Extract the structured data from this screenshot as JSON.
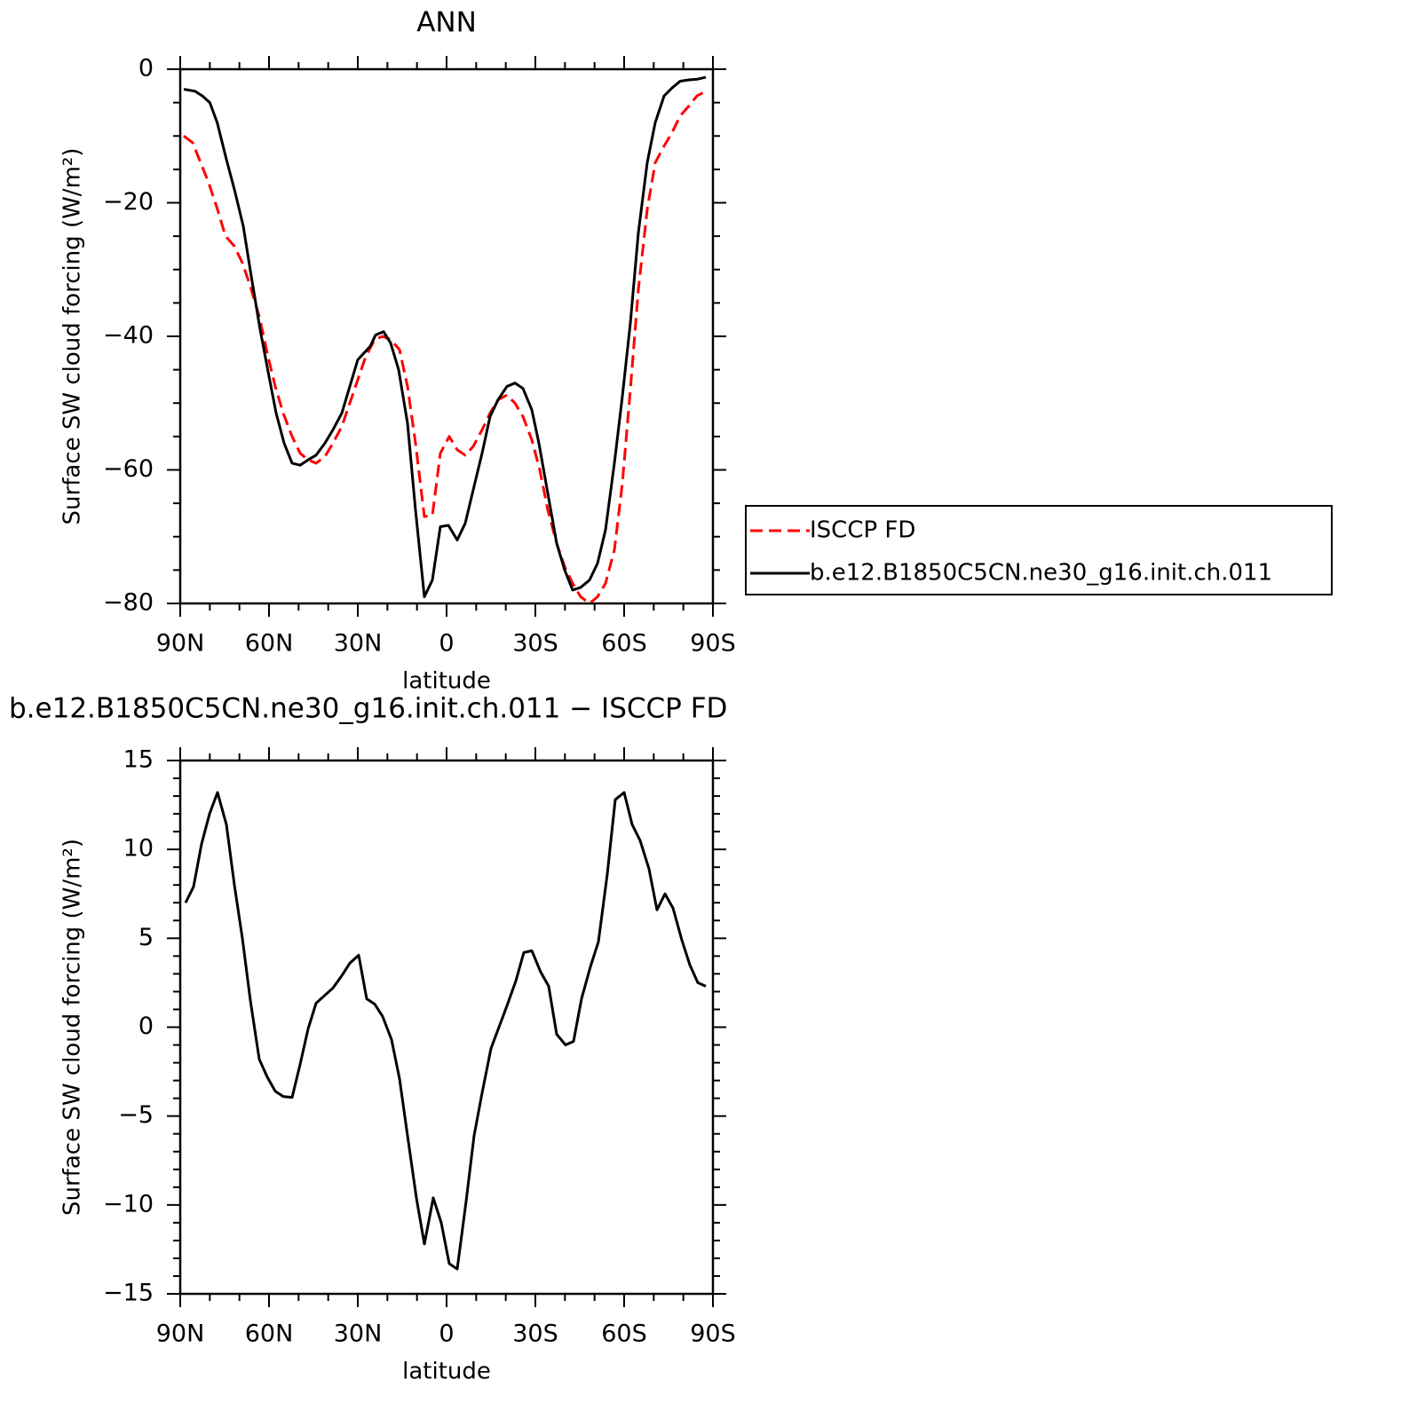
{
  "chart_data": [
    {
      "type": "line",
      "title": "ANN",
      "xlabel": "latitude",
      "ylabel": "Surface SW cloud forcing (W/m²)",
      "xlim": [
        90,
        -90
      ],
      "xticks": [
        {
          "value": 90,
          "label": "90N"
        },
        {
          "value": 60,
          "label": "60N"
        },
        {
          "value": 30,
          "label": "30N"
        },
        0,
        {
          "value": -30,
          "label": "30S"
        },
        {
          "value": -60,
          "label": "60S"
        },
        {
          "value": -90,
          "label": "90S"
        }
      ],
      "xminorticks": [
        80,
        70,
        50,
        40,
        20,
        10,
        -10,
        -20,
        -40,
        -50,
        -70,
        -80
      ],
      "ylim": [
        -80,
        0
      ],
      "yticks": [
        0,
        {
          "value": -20,
          "label": "−20"
        },
        {
          "value": -40,
          "label": "−40"
        },
        {
          "value": -60,
          "label": "−60"
        },
        {
          "value": -80,
          "label": "−80"
        }
      ],
      "yminorticks": [
        -5,
        -10,
        -15,
        -25,
        -30,
        -35,
        -45,
        -50,
        -55,
        -65,
        -70,
        -75
      ],
      "legend": "right",
      "series": [
        {
          "name": "ISCCP FD",
          "color": "#ff0000",
          "line_style": "dashed",
          "x": [
            88.8,
            85.8,
            83.1,
            80.4,
            77.4,
            74.7,
            71.7,
            69,
            66.3,
            63.3,
            60.6,
            57.9,
            55.2,
            52.2,
            49.5,
            46.8,
            44.1,
            41.1,
            38.4,
            35.4,
            32.7,
            30,
            27.3,
            24.3,
            21.6,
            18.9,
            15.9,
            13.2,
            10.5,
            7.5,
            4.8,
            2.1,
            -0.9,
            -3.6,
            -6.3,
            -9,
            -12,
            -14.7,
            -17.4,
            -20.4,
            -23.1,
            -25.8,
            -28.8,
            -31.5,
            -34.2,
            -37.2,
            -39.9,
            -42.6,
            -45.3,
            -48.3,
            -51,
            -53.7,
            -56.7,
            -59.4,
            -62.1,
            -64.8,
            -67.8,
            -70.5,
            -73.5,
            -76.2,
            -78.9,
            -81.9,
            -84.6,
            -87.6
          ],
          "values": [
            -10,
            -11,
            -14,
            -17,
            -21,
            -25,
            -26.5,
            -29,
            -32.5,
            -37,
            -42.5,
            -47.5,
            -51.5,
            -55,
            -57.5,
            -58.5,
            -59,
            -58,
            -56,
            -53.5,
            -50,
            -46.5,
            -43,
            -40.5,
            -40,
            -40.5,
            -42,
            -47.5,
            -56,
            -67,
            -66.8,
            -57.5,
            -55,
            -57,
            -57.8,
            -56.5,
            -54,
            -51.5,
            -49.5,
            -48.8,
            -50,
            -52,
            -55.5,
            -60,
            -66,
            -71,
            -74.5,
            -77,
            -79,
            -80,
            -79,
            -77,
            -72,
            -62,
            -48,
            -33,
            -21,
            -14,
            -11.5,
            -9.5,
            -7,
            -5.5,
            -4,
            -3.3
          ]
        },
        {
          "name": "b.e12.B1850C5CN.ne30_g16.init.ch.011",
          "color": "#000000",
          "line_style": "solid",
          "x": [
            88.8,
            85,
            82.5,
            80,
            77.5,
            74.4,
            71.7,
            68.7,
            66,
            63,
            60,
            57.6,
            54.9,
            52.2,
            49.5,
            46.8,
            44.1,
            41.1,
            38.4,
            35.4,
            32.7,
            30,
            27.9,
            25.8,
            24,
            21.3,
            18.9,
            16.2,
            13.2,
            10.5,
            7.5,
            4.8,
            2.1,
            -0.6,
            -3.6,
            -6.3,
            -9,
            -12,
            -14.7,
            -17.4,
            -20.4,
            -23.1,
            -25.8,
            -28.8,
            -31.2,
            -34.2,
            -37.2,
            -39.9,
            -42.6,
            -45.3,
            -48.3,
            -51,
            -53.7,
            -56.7,
            -59.4,
            -62.1,
            -64.8,
            -67.8,
            -70.5,
            -73.5,
            -76.2,
            -78.9,
            -81.9,
            -84.6,
            -87.6
          ],
          "values": [
            -3,
            -3.3,
            -4,
            -5,
            -8,
            -13.5,
            -18,
            -23.5,
            -31,
            -39,
            -46,
            -51.5,
            -56,
            -59,
            -59.3,
            -58.5,
            -57.8,
            -56,
            -54,
            -51.5,
            -47.5,
            -43.5,
            -42.5,
            -41.5,
            -39.8,
            -39.3,
            -41,
            -45,
            -53,
            -66,
            -79,
            -76.5,
            -68.5,
            -68.3,
            -70.5,
            -68,
            -63,
            -57.5,
            -52,
            -49.5,
            -47.5,
            -47,
            -47.8,
            -51,
            -56,
            -63.5,
            -71,
            -75,
            -78,
            -77.6,
            -76.5,
            -74,
            -69,
            -59,
            -49,
            -38,
            -24.5,
            -14,
            -8,
            -4,
            -2.8,
            -1.8,
            -1.6,
            -1.5,
            -1.2
          ]
        }
      ]
    },
    {
      "type": "line",
      "title": "b.e12.B1850C5CN.ne30_g16.init.ch.011 − ISCCP FD",
      "xlabel": "latitude",
      "ylabel": "Surface SW cloud forcing (W/m²)",
      "xlim": [
        90,
        -90
      ],
      "xticks": [
        {
          "value": 90,
          "label": "90N"
        },
        {
          "value": 60,
          "label": "60N"
        },
        {
          "value": 30,
          "label": "30N"
        },
        0,
        {
          "value": -30,
          "label": "30S"
        },
        {
          "value": -60,
          "label": "60S"
        },
        {
          "value": -90,
          "label": "90S"
        }
      ],
      "xminorticks": [
        80,
        70,
        50,
        40,
        20,
        10,
        -10,
        -20,
        -40,
        -50,
        -70,
        -80
      ],
      "ylim": [
        -15,
        15
      ],
      "yticks": [
        15,
        10,
        5,
        0,
        {
          "value": -5,
          "label": "−5"
        },
        {
          "value": -10,
          "label": "−10"
        },
        {
          "value": -15,
          "label": "−15"
        }
      ],
      "yminorticks": [
        14,
        13,
        12,
        11,
        9,
        8,
        7,
        6,
        4,
        3,
        2,
        1,
        -1,
        -2,
        -3,
        -4,
        -6,
        -7,
        -8,
        -9,
        -11,
        -12,
        -13,
        -14
      ],
      "series": [
        {
          "color": "#000000",
          "line_style": "solid",
          "x": [
            88.2,
            85.5,
            82.8,
            80.1,
            77.4,
            74.4,
            71.7,
            69,
            66.3,
            63.3,
            60.6,
            57.9,
            55.2,
            52.2,
            49.5,
            46.8,
            44.1,
            41.1,
            38.4,
            35.4,
            32.7,
            29.7,
            27,
            24.3,
            21.6,
            18.6,
            15.9,
            13.2,
            10.2,
            7.5,
            4.5,
            1.8,
            -0.9,
            -3.6,
            -6.6,
            -9.3,
            -12,
            -15,
            -17.7,
            -20.4,
            -23.4,
            -26.1,
            -28.8,
            -31.8,
            -34.5,
            -37.2,
            -40.2,
            -42.9,
            -45.6,
            -48.6,
            -51.3,
            -54.3,
            -57,
            -60,
            -62.7,
            -65.4,
            -68.4,
            -71.1,
            -73.8,
            -76.5,
            -79.5,
            -82.2,
            -84.9,
            -87.6
          ],
          "values": [
            7,
            7.9,
            10.3,
            12,
            13.2,
            11.4,
            8,
            5,
            1.5,
            -1.8,
            -2.8,
            -3.6,
            -3.9,
            -3.95,
            -2.1,
            -0.1,
            1.35,
            1.8,
            2.2,
            2.9,
            3.6,
            4.05,
            1.6,
            1.3,
            0.6,
            -0.7,
            -2.9,
            -6.1,
            -9.6,
            -12.2,
            -9.6,
            -11,
            -13.3,
            -13.6,
            -9.8,
            -6.1,
            -3.7,
            -1.2,
            0,
            1.2,
            2.6,
            4.2,
            4.3,
            3.1,
            2.3,
            -0.4,
            -1,
            -0.8,
            1.6,
            3.4,
            4.8,
            8.6,
            12.8,
            13.2,
            11.4,
            10.5,
            8.9,
            6.6,
            7.5,
            6.7,
            4.9,
            3.5,
            2.5,
            2.3
          ]
        }
      ]
    }
  ]
}
